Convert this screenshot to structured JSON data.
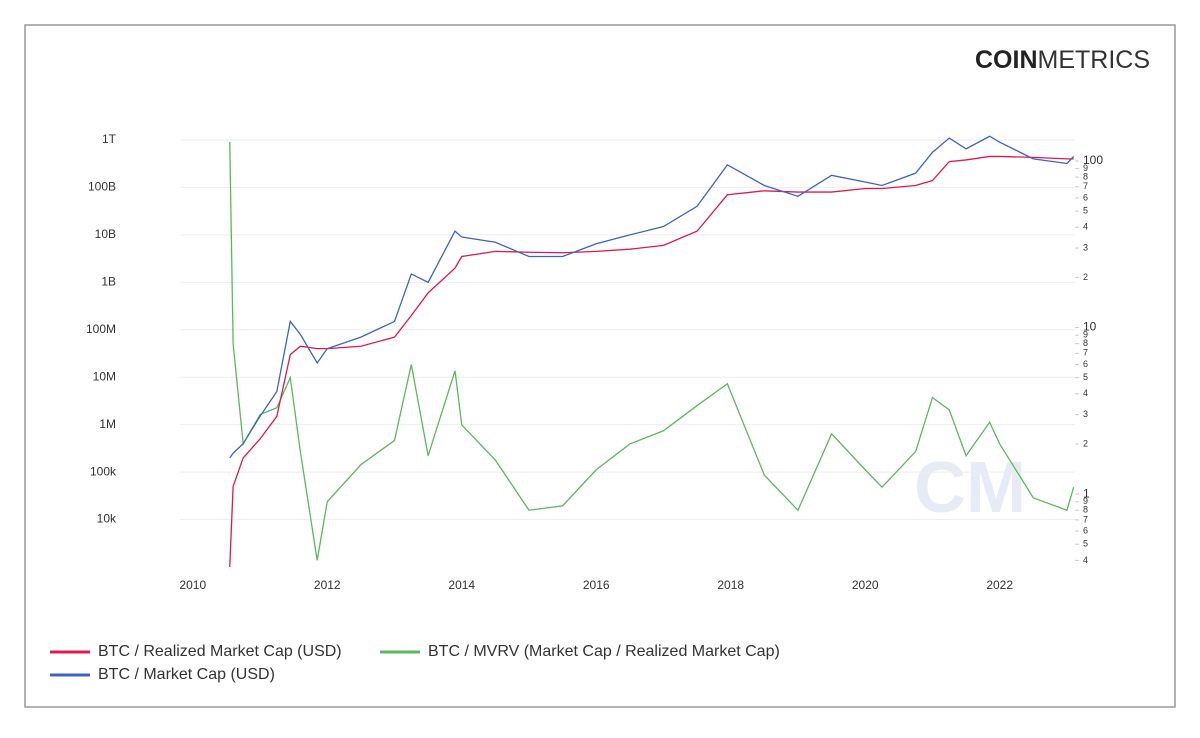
{
  "logo": {
    "bold": "COIN",
    "light": "METRICS"
  },
  "watermark": "CM",
  "chart_data": {
    "type": "line",
    "x": [
      2010.55,
      2010.6,
      2010.75,
      2011.0,
      2011.25,
      2011.45,
      2011.6,
      2011.85,
      2012.0,
      2012.5,
      2013.0,
      2013.25,
      2013.5,
      2013.9,
      2014.0,
      2014.5,
      2015.0,
      2015.5,
      2016.0,
      2016.5,
      2017.0,
      2017.5,
      2017.95,
      2018.5,
      2019.0,
      2019.5,
      2020.0,
      2020.25,
      2020.75,
      2021.0,
      2021.25,
      2021.5,
      2021.85,
      2022.0,
      2022.5,
      2023.0,
      2023.1
    ],
    "series": [
      {
        "name": "BTC / Realized Market Cap (USD)",
        "color": "#e0194a",
        "values": [
          1000,
          50000,
          200000,
          500000,
          1500000,
          30000000,
          45000000,
          40000000,
          40000000,
          45000000,
          70000000,
          200000000,
          600000000,
          2000000000,
          3500000000,
          4500000000,
          4300000000,
          4200000000,
          4500000000,
          5000000000,
          6000000000,
          12000000000,
          70000000000,
          85000000000,
          80000000000,
          80000000000,
          95000000000,
          95000000000,
          110000000000,
          140000000000,
          350000000000,
          380000000000,
          450000000000,
          450000000000,
          430000000000,
          400000000000,
          400000000000
        ]
      },
      {
        "name": "BTC / MVRV (Market Cap / Realized Market Cap)",
        "color": "#5cb85c",
        "axis": "y2",
        "values": [
          130,
          8,
          2,
          3,
          3.3,
          5,
          1.8,
          0.4,
          0.9,
          1.5,
          2.1,
          6,
          1.7,
          5.5,
          2.6,
          1.6,
          0.8,
          0.85,
          1.4,
          2.0,
          2.4,
          3.4,
          4.6,
          1.3,
          0.8,
          2.3,
          1.4,
          1.1,
          1.8,
          3.8,
          3.2,
          1.7,
          2.7,
          2.0,
          0.95,
          0.8,
          1.1
        ]
      },
      {
        "name": "BTC / Market Cap (USD)",
        "color": "#3d63c9",
        "values": [
          200000,
          250000,
          400000,
          1500000,
          5000000,
          150000000,
          80000000,
          20000000,
          40000000,
          70000000,
          150000000,
          1500000000,
          1000000000,
          12000000000,
          9000000000,
          7000000000,
          3500000000,
          3500000000,
          6500000000,
          10000000000,
          15000000000,
          40000000000,
          300000000000,
          110000000000,
          65000000000,
          180000000000,
          130000000000,
          110000000000,
          200000000000,
          550000000000,
          1100000000000,
          650000000000,
          1200000000000,
          900000000000,
          400000000000,
          320000000000,
          450000000000
        ]
      }
    ],
    "xlim": [
      2009.81,
      2023.12
    ],
    "xticks": [
      2010,
      2012,
      2014,
      2016,
      2018,
      2020,
      2022
    ],
    "ylim": [
      1000,
      1000000000000
    ],
    "yscale": "log",
    "yticks": [
      {
        "value": 10000,
        "label": "10k"
      },
      {
        "value": 100000,
        "label": "100k"
      },
      {
        "value": 1000000,
        "label": "1M"
      },
      {
        "value": 10000000,
        "label": "10M"
      },
      {
        "value": 100000000,
        "label": "100M"
      },
      {
        "value": 1000000000,
        "label": "1B"
      },
      {
        "value": 10000000000,
        "label": "10B"
      },
      {
        "value": 100000000000,
        "label": "100B"
      },
      {
        "value": 1000000000000,
        "label": "1T"
      }
    ],
    "y2lim": [
      0.365,
      133.6
    ],
    "y2scale": "log",
    "y2ticks": [
      {
        "value": 0.4,
        "label": "4"
      },
      {
        "value": 0.5,
        "label": "5"
      },
      {
        "value": 0.6,
        "label": "6"
      },
      {
        "value": 0.7,
        "label": "7"
      },
      {
        "value": 0.8,
        "label": "8"
      },
      {
        "value": 0.9,
        "label": "9"
      },
      1,
      {
        "value": 2,
        "label": "2"
      },
      {
        "value": 3,
        "label": "3"
      },
      {
        "value": 4,
        "label": "4"
      },
      {
        "value": 5,
        "label": "5"
      },
      {
        "value": 6,
        "label": "6"
      },
      {
        "value": 7,
        "label": "7"
      },
      {
        "value": 8,
        "label": "8"
      },
      {
        "value": 9,
        "label": "9"
      },
      10,
      {
        "value": 20,
        "label": "2"
      },
      {
        "value": 30,
        "label": "3"
      },
      {
        "value": 40,
        "label": "4"
      },
      {
        "value": 50,
        "label": "5"
      },
      {
        "value": 60,
        "label": "6"
      },
      {
        "value": 70,
        "label": "7"
      },
      {
        "value": 80,
        "label": "8"
      },
      {
        "value": 90,
        "label": "9"
      },
      100
    ],
    "grid": true,
    "legend": "bottom"
  }
}
